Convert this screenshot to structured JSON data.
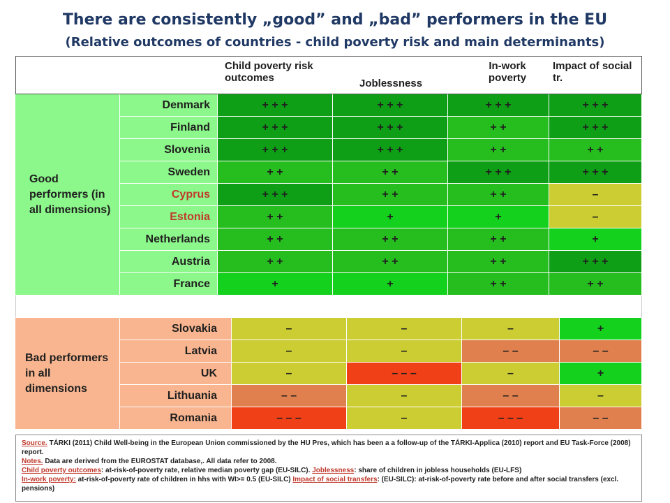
{
  "title": "There are consistently „good” and „bad” performers in the EU",
  "subtitle": "(Relative outcomes of countries - child poverty risk and main determinants)",
  "columns": {
    "c1": "Child poverty risk outcomes",
    "c2": "Joblessness",
    "c3": "In-work poverty",
    "c4": "Impact of social tr."
  },
  "groups": {
    "good": "Good performers (in all dimensions)",
    "bad": "Bad performers in all dimensions"
  },
  "colors": {
    "dark_green": "#0e9f16",
    "mid_green": "#26bd1f",
    "light_green": "#14d11e",
    "olive": "#cccc33",
    "orange": "#e0804f",
    "red": "#f04018",
    "good_label_bg": "#8cf78a",
    "bad_label_bg": "#f8b58f"
  },
  "good_rows": [
    {
      "country": "Denmark",
      "country_red": false,
      "vals": [
        "+ + +",
        "+ + +",
        "+ + +",
        "+ + +"
      ],
      "bg": [
        "dark_green",
        "dark_green",
        "dark_green",
        "dark_green"
      ]
    },
    {
      "country": "Finland",
      "country_red": false,
      "vals": [
        "+ + +",
        "+ + +",
        "+ +",
        "+ + +"
      ],
      "bg": [
        "dark_green",
        "dark_green",
        "mid_green",
        "dark_green"
      ]
    },
    {
      "country": "Slovenia",
      "country_red": false,
      "vals": [
        "+ + +",
        "+ + +",
        "+ +",
        "+ +"
      ],
      "bg": [
        "dark_green",
        "dark_green",
        "mid_green",
        "mid_green"
      ]
    },
    {
      "country": "Sweden",
      "country_red": false,
      "vals": [
        "+ +",
        "+ +",
        "+ + +",
        "+ + +"
      ],
      "bg": [
        "mid_green",
        "mid_green",
        "dark_green",
        "dark_green"
      ]
    },
    {
      "country": "Cyprus",
      "country_red": true,
      "vals": [
        "+ + +",
        "+ +",
        "+ +",
        "–"
      ],
      "bg": [
        "dark_green",
        "mid_green",
        "mid_green",
        "olive"
      ]
    },
    {
      "country": "Estonia",
      "country_red": true,
      "vals": [
        "+ +",
        "+",
        "+",
        "–"
      ],
      "bg": [
        "mid_green",
        "light_green",
        "light_green",
        "olive"
      ]
    },
    {
      "country": "Netherlands",
      "country_red": false,
      "vals": [
        "+ +",
        "+ +",
        "+ +",
        "+"
      ],
      "bg": [
        "mid_green",
        "mid_green",
        "mid_green",
        "light_green"
      ]
    },
    {
      "country": "Austria",
      "country_red": false,
      "vals": [
        "+ +",
        "+ +",
        "+ +",
        "+ + +"
      ],
      "bg": [
        "mid_green",
        "mid_green",
        "mid_green",
        "dark_green"
      ]
    },
    {
      "country": "France",
      "country_red": false,
      "vals": [
        "+",
        "+",
        "+ +",
        "+ +"
      ],
      "bg": [
        "light_green",
        "light_green",
        "mid_green",
        "mid_green"
      ]
    }
  ],
  "bad_rows": [
    {
      "country": "Slovakia",
      "vals": [
        "–",
        "–",
        "–",
        "+"
      ],
      "bg": [
        "olive",
        "olive",
        "olive",
        "light_green"
      ]
    },
    {
      "country": "Latvia",
      "vals": [
        "–",
        "–",
        "– –",
        "– –"
      ],
      "bg": [
        "olive",
        "olive",
        "orange",
        "orange"
      ]
    },
    {
      "country": "UK",
      "vals": [
        "–",
        "– – –",
        "–",
        "+"
      ],
      "bg": [
        "olive",
        "red",
        "olive",
        "light_green"
      ]
    },
    {
      "country": "Lithuania",
      "vals": [
        "– –",
        "–",
        "– –",
        "–"
      ],
      "bg": [
        "orange",
        "olive",
        "orange",
        "olive"
      ]
    },
    {
      "country": "Romania",
      "vals": [
        "– – –",
        "–",
        "– – –",
        "– –"
      ],
      "bg": [
        "red",
        "olive",
        "red",
        "orange"
      ]
    }
  ],
  "notes": {
    "source_label": "Source.",
    "source_text": " TÁRKI (2011) Child Well-being in the European Union commissioned by the HU Pres, which has been a a follow-up of  the TÁRKI-Applica (2010) report  and EU Task-Force (2008) report.",
    "notes_label": "Notes.",
    "notes_text": " Data are derived from the EUROSTAT database,. All data refer to 2008.",
    "def1_label": "Child poverty outcomes",
    "def1_text": ": at-risk-of-poverty rate, relative median poverty gap (EU-SILC).  ",
    "def2_label": "Joblessness",
    "def2_text": ": share of children in jobless households (EU-LFS)",
    "def3_label": "In-work poverty:",
    "def3_text": " at-risk-of-poverty rate of children in hhs with WI>= 0.5 (EU-SILC) ",
    "def4_label": "Impact of social transfers",
    "def4_text": ": (EU-SILC): at-risk-of-poverty rate before and after social transfers (excl. pensions)"
  }
}
